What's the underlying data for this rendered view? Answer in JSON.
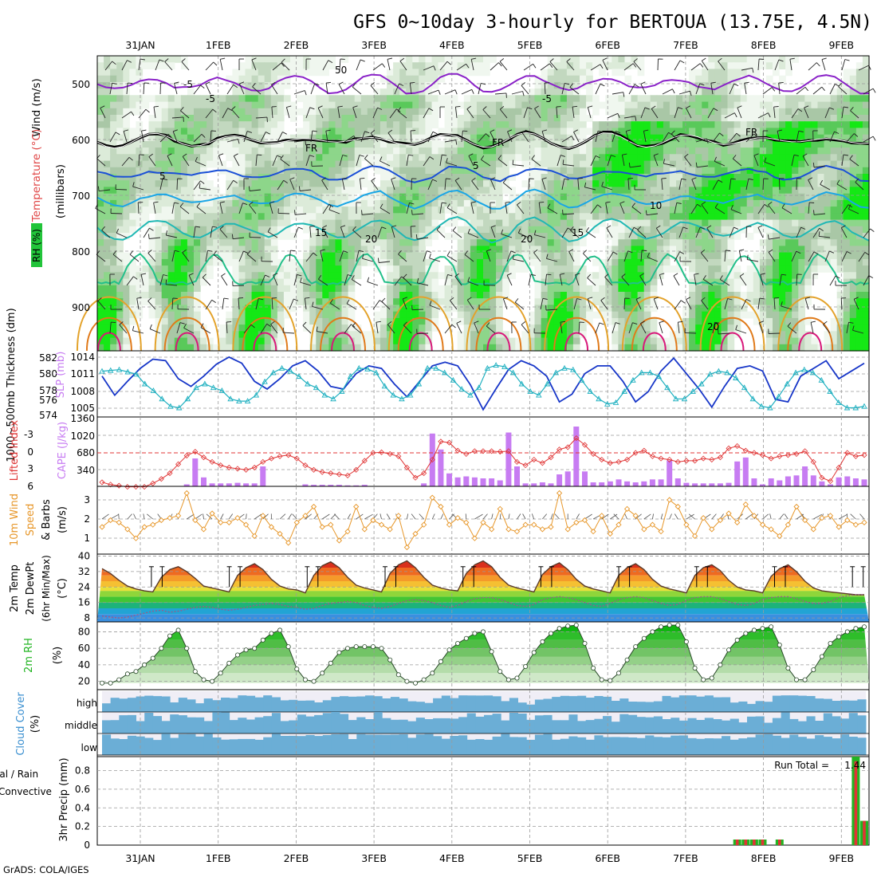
{
  "title": "GFS 0~10day 3-hourly for BERTOUA (13.75E, 4.5N)",
  "credit": "GrADS: COLA/IGES",
  "colors": {
    "rh": [
      "#f0f7ef",
      "#dcebd9",
      "#c2d8bf",
      "#a9c7a6",
      "#8dd68a",
      "#59c95a",
      "#15e815"
    ],
    "temp_m5": "#8a22c8",
    "temp_fr": "#000000",
    "temp_5": "#1a4fd6",
    "temp_10": "#1aa6e6",
    "temp_15": "#20b8b4",
    "temp_20": "#22c08a",
    "temp_25": "#e3a22a",
    "temp_30": "#e07a1a",
    "temp_35": "#d8187a",
    "slp": "#1736c8",
    "thickness": "#1fb0c0",
    "li": "#e03434",
    "cape": "#c77cf2",
    "wind10": "#e7972a",
    "temp2m_line": "#5a3a2a",
    "rh2m": "#22b422",
    "cloud": "#6baed6",
    "cloud_empty": "#e6e6e6",
    "rain_total": "#22b422",
    "rain_conv": "#e03434"
  },
  "chart_data": [
    {
      "panel": "upper-air",
      "type": "heatmap",
      "ylabel_parts": [
        "Wind (m/s)",
        "Temperature (°C)",
        "RH (%)"
      ],
      "yaxis_label": "(millibars)",
      "y_ticks": [
        "500",
        "600",
        "700",
        "800",
        "900"
      ],
      "contour_labels": [
        "-5",
        "-5",
        "-5",
        "FR",
        "FR",
        "FR",
        "5",
        "5",
        "10",
        "15",
        "15",
        "20",
        "20",
        "20",
        "50"
      ]
    },
    {
      "panel": "slp-thickness",
      "type": "line",
      "ylabel_left": "1000~500mb Thickness (dm)",
      "ylabel_right": "SLP (mb)",
      "y_ticks_left": [
        "582",
        "580",
        "578",
        "576",
        "574"
      ],
      "y_ticks_right": [
        "1014",
        "1011",
        "1008",
        "1005"
      ],
      "ylim_slp": [
        1003.2,
        1014.8
      ],
      "ylim_thickness": [
        574.5,
        582.5
      ],
      "series": [
        {
          "name": "SLP (mb)",
          "values": [
            1010.5,
            1006.8,
            1009.5,
            1012.0,
            1013.8,
            1013.5,
            1010.0,
            1008.5,
            1010.5,
            1012.8,
            1014.2,
            1013.0,
            1009.5,
            1008.0,
            1010.0,
            1012.5,
            1013.5,
            1011.5,
            1008.5,
            1008.0,
            1011.0,
            1012.5,
            1012.0,
            1009.0,
            1006.5,
            1009.5,
            1012.5,
            1013.2,
            1012.5,
            1008.8,
            1004.0,
            1008.0,
            1011.8,
            1013.5,
            1012.5,
            1010.5,
            1005.5,
            1007.0,
            1011.0,
            1012.5,
            1012.5,
            1009.5,
            1005.5,
            1007.5,
            1011.5,
            1014.0,
            1011.0,
            1008.0,
            1004.5,
            1008.5,
            1012.0,
            1012.5,
            1011.5,
            1006.0,
            1005.5,
            1010.5,
            1012.0,
            1013.5,
            1010.0,
            1011.5,
            1013.0
          ]
        },
        {
          "name": "1000~500mb Thickness (dm)",
          "values": [
            580.2,
            580.3,
            580.4,
            580.1,
            579.8,
            578.5,
            577.6,
            576.5,
            575.5,
            575.3,
            576.5,
            578.0,
            578.5,
            578.0,
            577.6,
            576.5,
            576.2,
            576.2,
            577.0,
            578.8,
            580.0,
            580.6,
            580.2,
            579.5,
            578.5,
            578.0,
            577.0,
            576.5,
            577.5,
            579.5,
            580.6,
            580.5,
            580.0,
            578.2,
            577.0,
            576.5,
            577.0,
            578.5,
            580.6,
            580.6,
            580.0,
            579.0,
            577.8,
            577.0,
            578.0,
            580.6,
            581.0,
            580.8,
            580.0,
            578.5,
            577.5,
            577.0,
            578.5,
            580.0,
            580.6,
            580.4,
            579.0,
            577.5,
            576.5,
            575.8,
            576.0,
            577.5,
            579.0,
            580.0,
            580.0,
            579.5,
            578.0,
            576.5,
            576.5,
            577.5,
            578.5,
            579.8,
            580.2,
            580.0,
            579.3,
            578.0,
            576.5,
            575.5,
            575.3,
            576.8,
            578.5,
            580.0,
            580.4,
            580.0,
            579.0,
            577.5,
            576.0,
            575.3,
            575.3,
            575.5
          ]
        }
      ]
    },
    {
      "panel": "li-cape",
      "type": "bar",
      "ylabel_left": "Lifted Index",
      "ylabel_right": "CAPE (J/kg)",
      "y_ticks_left": [
        "-3",
        "0",
        "3",
        "6"
      ],
      "y_ticks_right": [
        "1360",
        "1020",
        "680",
        "340"
      ],
      "ylim_li": [
        6,
        -6
      ],
      "ylim_cape": [
        0,
        1360
      ],
      "series": [
        {
          "name": "CAPE (J/kg)",
          "values": [
            0,
            0,
            0,
            0,
            0,
            0,
            0,
            0,
            0,
            0,
            40,
            560,
            180,
            60,
            60,
            60,
            70,
            60,
            60,
            400,
            0,
            0,
            0,
            0,
            40,
            30,
            30,
            30,
            30,
            20,
            20,
            30,
            0,
            0,
            0,
            0,
            0,
            0,
            60,
            1060,
            740,
            260,
            180,
            200,
            180,
            160,
            160,
            120,
            1080,
            400,
            60,
            60,
            80,
            60,
            240,
            300,
            1200,
            300,
            80,
            80,
            100,
            140,
            100,
            80,
            100,
            140,
            140,
            520,
            160,
            70,
            60,
            60,
            60,
            60,
            70,
            500,
            580,
            160,
            40,
            160,
            120,
            200,
            220,
            400,
            220,
            100,
            40,
            180,
            200,
            160,
            140
          ]
        },
        {
          "name": "Lifted Index",
          "values": [
            5.2,
            5.6,
            5.8,
            6.0,
            6.0,
            6.0,
            5.4,
            4.6,
            3.6,
            2.0,
            0.5,
            -0.2,
            0.8,
            1.6,
            2.2,
            2.6,
            2.8,
            3.0,
            2.6,
            1.6,
            1.0,
            0.6,
            0.4,
            1.0,
            2.2,
            3.0,
            3.4,
            3.6,
            3.8,
            4.0,
            3.0,
            1.4,
            0.0,
            -0.1,
            0.2,
            0.6,
            2.6,
            4.4,
            3.6,
            1.2,
            -2.0,
            -1.8,
            -0.4,
            0.2,
            -0.3,
            -0.3,
            -0.3,
            -0.2,
            -0.3,
            1.6,
            2.2,
            1.2,
            1.8,
            0.8,
            -0.6,
            -1.0,
            -2.6,
            -1.4,
            0.2,
            1.2,
            1.8,
            1.6,
            1.2,
            0.0,
            -0.4,
            0.6,
            1.0,
            1.2,
            1.6,
            1.4,
            1.4,
            1.0,
            1.2,
            0.8,
            -0.8,
            -1.2,
            -0.4,
            0.0,
            0.4,
            1.0,
            0.6,
            0.4,
            0.2,
            -0.3,
            1.6,
            4.4,
            5.0,
            2.6,
            0.0,
            0.6,
            0.4
          ]
        }
      ]
    },
    {
      "panel": "wind10m",
      "type": "line",
      "ylabel": "10m Wind Speed & Barbs (m/s)",
      "y_ticks": [
        "3",
        "2",
        "1"
      ],
      "ylim": [
        0.5,
        3.5
      ],
      "series": [
        {
          "name": "Speed",
          "values": [
            1.7,
            2.0,
            1.9,
            1.6,
            1.2,
            1.7,
            1.8,
            2.0,
            2.1,
            2.2,
            3.2,
            2.0,
            1.6,
            2.3,
            1.9,
            1.9,
            2.1,
            1.8,
            1.3,
            2.2,
            1.7,
            1.4,
            1.0,
            1.9,
            2.2,
            2.6,
            1.7,
            1.8,
            1.1,
            1.5,
            2.6,
            1.6,
            2.0,
            1.8,
            1.6,
            2.2,
            0.8,
            1.4,
            1.8,
            3.0,
            2.6,
            1.8,
            2.1,
            1.9,
            1.2,
            1.9,
            1.6,
            2.5,
            1.6,
            1.5,
            1.8,
            1.8,
            1.6,
            1.7,
            3.2,
            1.6,
            1.9,
            2.0,
            1.5,
            2.2,
            1.4,
            1.8,
            2.5,
            2.2,
            1.6,
            1.8,
            1.5,
            2.9,
            2.6,
            1.8,
            1.3,
            2.1,
            1.6,
            2.0,
            2.3,
            1.9,
            2.7,
            2.2,
            1.8,
            1.6,
            1.3,
            1.8,
            2.6,
            2.0,
            1.6,
            2.1,
            2.2,
            1.7,
            2.0,
            1.8,
            1.9
          ]
        }
      ]
    },
    {
      "panel": "temp2m",
      "type": "area",
      "ylabel": "2m Temp 2m DewPt (6hr Min/Max) (°C)",
      "y_ticks": [
        "40",
        "32",
        "24",
        "16",
        "8"
      ],
      "ylim": [
        6,
        41
      ],
      "series": [
        {
          "name": "2m Temp",
          "values": [
            33.5,
            31.0,
            27.5,
            24.5,
            23.0,
            22.0,
            21.5,
            29.0,
            33.0,
            34.5,
            32.0,
            28.5,
            24.5,
            23.5,
            22.5,
            21.5,
            30.0,
            34.0,
            36.0,
            33.0,
            28.0,
            24.5,
            23.0,
            22.5,
            21.0,
            30.0,
            35.0,
            37.0,
            34.0,
            29.0,
            25.0,
            23.5,
            22.5,
            21.5,
            31.0,
            35.5,
            37.5,
            34.0,
            29.0,
            25.0,
            23.5,
            22.5,
            22.0,
            31.0,
            35.5,
            37.5,
            34.5,
            29.0,
            25.0,
            23.5,
            22.5,
            21.5,
            30.5,
            34.5,
            36.5,
            33.0,
            28.0,
            24.5,
            23.0,
            22.0,
            21.0,
            30.0,
            34.0,
            36.0,
            33.0,
            28.0,
            24.5,
            23.0,
            22.0,
            21.0,
            30.0,
            34.0,
            35.5,
            32.5,
            27.5,
            24.0,
            22.5,
            22.0,
            21.0,
            29.5,
            33.5,
            35.5,
            32.0,
            27.0,
            23.5,
            22.0,
            21.5,
            21.0,
            20.5,
            20.0,
            20.0
          ]
        },
        {
          "name": "2m DewPt",
          "values": [
            9.0,
            8.5,
            8.0,
            8.5,
            9.5,
            10.5,
            11.5,
            12.0,
            11.0,
            11.5,
            12.5,
            13.5,
            14.0,
            13.5,
            12.5,
            12.0,
            12.5,
            13.5,
            14.5,
            15.0,
            15.5,
            15.0,
            14.0,
            13.5,
            12.5,
            13.0,
            14.5,
            15.5,
            16.0,
            16.5,
            16.0,
            14.5,
            13.5,
            13.0,
            14.0,
            15.5,
            17.0,
            17.5,
            17.0,
            16.0,
            14.5,
            13.5,
            14.5,
            16.5,
            18.0,
            18.5,
            18.5,
            17.5,
            16.0,
            14.5,
            14.0,
            15.0,
            17.5,
            18.5,
            19.0,
            18.5,
            17.5,
            16.0,
            14.5,
            14.0,
            15.5,
            17.5,
            18.5,
            19.0,
            18.5,
            17.0,
            15.5,
            14.5,
            15.0,
            17.0,
            18.5,
            19.0,
            19.0,
            18.0,
            16.5,
            15.0,
            14.5,
            15.5,
            17.5,
            18.5,
            19.0,
            19.0,
            18.0,
            16.5,
            15.5,
            15.5,
            16.5,
            18.5,
            19.5,
            20.0,
            20.0
          ]
        }
      ]
    },
    {
      "panel": "rh2m",
      "type": "area",
      "ylabel": "2m RH (%)",
      "y_ticks": [
        "80",
        "60",
        "40",
        "20"
      ],
      "ylim": [
        10,
        92
      ],
      "series": [
        {
          "name": "2m RH",
          "values": [
            18,
            18,
            22,
            29,
            32,
            40,
            48,
            60,
            75,
            82,
            60,
            32,
            22,
            20,
            30,
            42,
            52,
            58,
            60,
            70,
            78,
            82,
            62,
            35,
            22,
            20,
            30,
            42,
            55,
            60,
            62,
            62,
            62,
            60,
            46,
            28,
            20,
            18,
            22,
            30,
            44,
            58,
            66,
            72,
            78,
            80,
            56,
            32,
            22,
            24,
            38,
            55,
            68,
            78,
            84,
            87,
            88,
            66,
            36,
            22,
            21,
            30,
            46,
            62,
            72,
            80,
            86,
            88,
            88,
            68,
            36,
            22,
            24,
            40,
            58,
            70,
            78,
            82,
            84,
            86,
            64,
            36,
            22,
            22,
            34,
            50,
            66,
            74,
            80,
            84,
            86
          ]
        }
      ]
    },
    {
      "panel": "cloud",
      "type": "heatmap",
      "ylabel": "Cloud Cover (%)",
      "rows": [
        "high",
        "middle",
        "low"
      ]
    },
    {
      "panel": "precip",
      "type": "bar",
      "ylabel_parts": [
        "Total / Rain",
        "Convective",
        "3hr Precip (mm)"
      ],
      "y_ticks": [
        "0.8",
        "0.6",
        "0.4",
        "0.2",
        "0"
      ],
      "ylim": [
        0,
        0.95
      ],
      "run_total_label": "Run Total =",
      "run_total_value": "1.44",
      "series": [
        {
          "name": "Total",
          "values": [
            0,
            0,
            0,
            0,
            0,
            0,
            0,
            0,
            0,
            0,
            0,
            0,
            0,
            0,
            0,
            0,
            0,
            0,
            0,
            0,
            0,
            0,
            0,
            0,
            0,
            0,
            0,
            0,
            0,
            0,
            0,
            0,
            0,
            0,
            0,
            0,
            0,
            0,
            0,
            0,
            0,
            0,
            0,
            0,
            0,
            0,
            0,
            0,
            0,
            0,
            0,
            0,
            0,
            0,
            0,
            0,
            0,
            0,
            0,
            0,
            0,
            0,
            0,
            0,
            0,
            0,
            0,
            0,
            0,
            0,
            0,
            0,
            0,
            0,
            0,
            0.06,
            0.06,
            0.06,
            0.06,
            0,
            0.06,
            0,
            0,
            0,
            0,
            0,
            0,
            0,
            0,
            0.95,
            0.26
          ]
        },
        {
          "name": "Convective",
          "values": [
            0,
            0,
            0,
            0,
            0,
            0,
            0,
            0,
            0,
            0,
            0,
            0,
            0,
            0,
            0,
            0,
            0,
            0,
            0,
            0,
            0,
            0,
            0,
            0,
            0,
            0,
            0,
            0,
            0,
            0,
            0,
            0,
            0,
            0,
            0,
            0,
            0,
            0,
            0,
            0,
            0,
            0,
            0,
            0,
            0,
            0,
            0,
            0,
            0,
            0,
            0,
            0,
            0,
            0,
            0,
            0,
            0,
            0,
            0,
            0,
            0,
            0,
            0,
            0,
            0,
            0,
            0,
            0,
            0,
            0,
            0,
            0,
            0,
            0,
            0,
            0.06,
            0.06,
            0.06,
            0.06,
            0,
            0.06,
            0,
            0,
            0,
            0,
            0,
            0,
            0,
            0,
            0.9,
            0.26
          ]
        }
      ]
    }
  ],
  "dates_top": [
    "31JAN",
    "1FEB",
    "2FEB",
    "3FEB",
    "4FEB",
    "5FEB",
    "6FEB",
    "7FEB",
    "8FEB",
    "9FEB"
  ],
  "dates_bottom": [
    "31JAN",
    "1FEB",
    "2FEB",
    "3FEB",
    "4FEB",
    "5FEB",
    "6FEB",
    "7FEB",
    "8FEB",
    "9FEB"
  ]
}
